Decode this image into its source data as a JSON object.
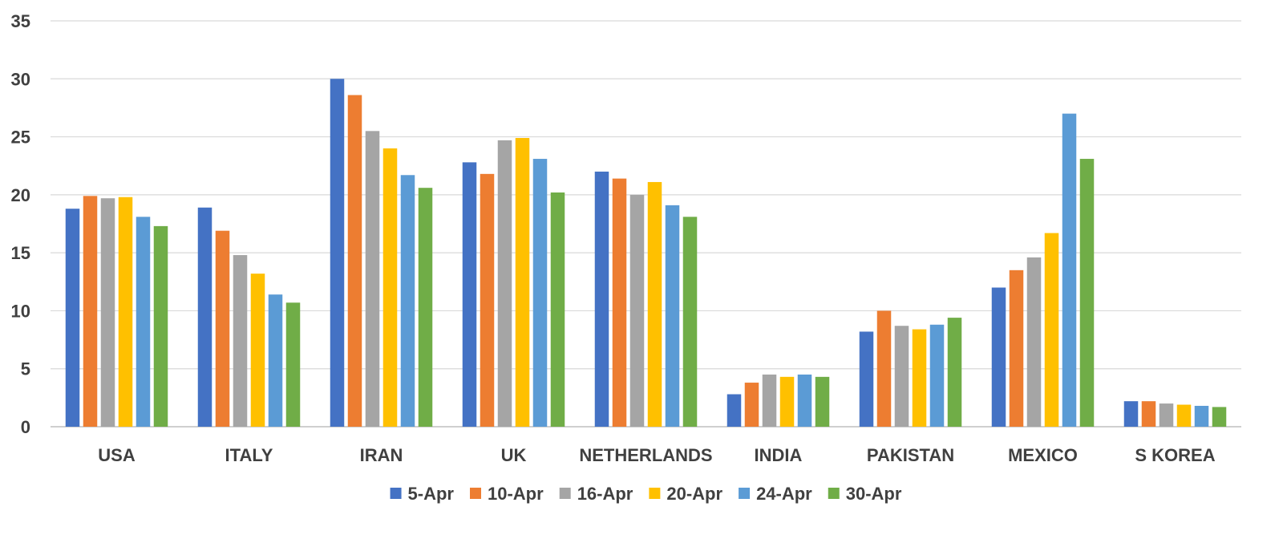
{
  "chart_data": {
    "type": "bar",
    "title": "",
    "xlabel": "",
    "ylabel": "",
    "ylim": [
      0,
      35
    ],
    "yticks": [
      0,
      5,
      10,
      15,
      20,
      25,
      30,
      35
    ],
    "grid": true,
    "legend_position": "bottom",
    "categories": [
      "USA",
      "ITALY",
      "IRAN",
      "UK",
      "NETHERLANDS",
      "INDIA",
      "PAKISTAN",
      "MEXICO",
      "S KOREA"
    ],
    "series": [
      {
        "name": "5-Apr",
        "color": "#4472C4",
        "values": [
          18.8,
          18.9,
          30.0,
          22.8,
          22.0,
          2.8,
          8.2,
          12.0,
          2.2
        ]
      },
      {
        "name": "10-Apr",
        "color": "#ED7D31",
        "values": [
          19.9,
          16.9,
          28.6,
          21.8,
          21.4,
          3.8,
          10.0,
          13.5,
          2.2
        ]
      },
      {
        "name": "16-Apr",
        "color": "#A5A5A5",
        "values": [
          19.7,
          14.8,
          25.5,
          24.7,
          20.0,
          4.5,
          8.7,
          14.6,
          2.0
        ]
      },
      {
        "name": "20-Apr",
        "color": "#FFC000",
        "values": [
          19.8,
          13.2,
          24.0,
          24.9,
          21.1,
          4.3,
          8.4,
          16.7,
          1.9
        ]
      },
      {
        "name": "24-Apr",
        "color": "#5B9BD5",
        "values": [
          18.1,
          11.4,
          21.7,
          23.1,
          19.1,
          4.5,
          8.8,
          27.0,
          1.8
        ]
      },
      {
        "name": "30-Apr",
        "color": "#70AD47",
        "values": [
          17.3,
          10.7,
          20.6,
          20.2,
          18.1,
          4.3,
          9.4,
          23.1,
          1.7
        ]
      }
    ],
    "colors": {
      "gridline": "#D9D9D9",
      "axis_line": "#BFBFBF",
      "text": "#404040"
    }
  }
}
